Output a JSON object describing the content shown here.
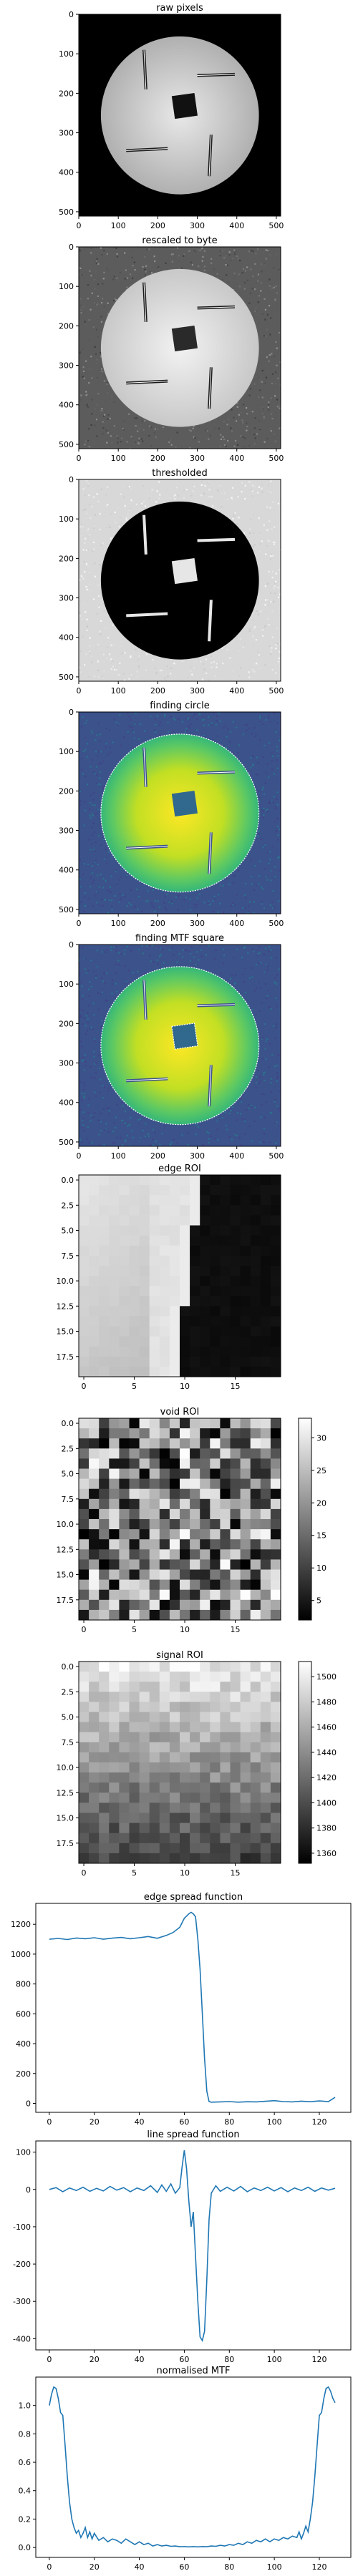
{
  "figure": {
    "background": "#ffffff",
    "axis_color": "#000000",
    "line_color": "#1f77b4"
  },
  "chart_data": [
    {
      "type": "heatmap",
      "title": "raw pixels",
      "colormap": "gray",
      "x_ticks": [
        0,
        100,
        200,
        300,
        400,
        500
      ],
      "y_ticks": [
        0,
        100,
        200,
        300,
        400,
        500
      ],
      "xlim": [
        0,
        511
      ],
      "ylim": [
        0,
        511
      ],
      "image": {
        "kind": "phantom",
        "variant": "raw",
        "circle": {
          "cx": 256,
          "cy": 256,
          "r": 200
        },
        "outside": "#000000",
        "center": "#e8e8e8",
        "rim": "#b0b0b0",
        "square": {
          "cx": 268,
          "cy": 232,
          "size": 58,
          "angle": -8,
          "fill": "#111111"
        }
      }
    },
    {
      "type": "heatmap",
      "title": "rescaled to byte",
      "colormap": "gray",
      "x_ticks": [
        0,
        100,
        200,
        300,
        400,
        500
      ],
      "y_ticks": [
        0,
        100,
        200,
        300,
        400,
        500
      ],
      "xlim": [
        0,
        511
      ],
      "ylim": [
        0,
        511
      ],
      "image": {
        "kind": "phantom",
        "variant": "rescaled",
        "circle": {
          "cx": 256,
          "cy": 256,
          "r": 200
        },
        "outside": "#5c5c5c",
        "center": "#f2f2f2",
        "rim": "#c8c8c8",
        "square": {
          "cx": 268,
          "cy": 232,
          "size": 58,
          "angle": -8,
          "fill": "#2a2a2a"
        }
      }
    },
    {
      "type": "heatmap",
      "title": "thresholded",
      "colormap": "gray",
      "x_ticks": [
        0,
        100,
        200,
        300,
        400,
        500
      ],
      "y_ticks": [
        0,
        100,
        200,
        300,
        400,
        500
      ],
      "xlim": [
        0,
        511
      ],
      "ylim": [
        0,
        511
      ],
      "image": {
        "kind": "phantom",
        "variant": "threshold",
        "circle": {
          "cx": 256,
          "cy": 256,
          "r": 200
        },
        "outside": "#d8d8d8",
        "center": "#000000",
        "rim": "#000000",
        "square": {
          "cx": 268,
          "cy": 232,
          "size": 58,
          "angle": -8,
          "fill": "#e6e6e6"
        }
      }
    },
    {
      "type": "heatmap",
      "title": "finding circle",
      "colormap": "viridis",
      "x_ticks": [
        0,
        100,
        200,
        300,
        400,
        500
      ],
      "y_ticks": [
        0,
        100,
        200,
        300,
        400,
        500
      ],
      "xlim": [
        0,
        511
      ],
      "ylim": [
        0,
        511
      ],
      "image": {
        "kind": "phantom",
        "variant": "viridis",
        "circle": {
          "cx": 256,
          "cy": 256,
          "r": 200
        },
        "outside": "#3b528b",
        "center": "#fde725",
        "rim": "#5ec962",
        "square": {
          "cx": 268,
          "cy": 232,
          "size": 58,
          "angle": -8,
          "fill": "#31688e"
        },
        "outline_circle": true
      }
    },
    {
      "type": "heatmap",
      "title": "finding MTF square",
      "colormap": "viridis",
      "x_ticks": [
        0,
        100,
        200,
        300,
        400,
        500
      ],
      "y_ticks": [
        0,
        100,
        200,
        300,
        400,
        500
      ],
      "xlim": [
        0,
        511
      ],
      "ylim": [
        0,
        511
      ],
      "image": {
        "kind": "phantom",
        "variant": "viridis",
        "circle": {
          "cx": 256,
          "cy": 256,
          "r": 200
        },
        "outside": "#3b528b",
        "center": "#fde725",
        "rim": "#5ec962",
        "square": {
          "cx": 268,
          "cy": 232,
          "size": 58,
          "angle": -8,
          "fill": "#31688e"
        },
        "outline_circle": true,
        "outline_square": true
      }
    },
    {
      "type": "heatmap",
      "title": "edge ROI",
      "colormap": "gray",
      "x_ticks": [
        0,
        5,
        10,
        15
      ],
      "y_ticks": [
        0.0,
        2.5,
        5.0,
        7.5,
        10.0,
        12.5,
        15.0,
        17.5
      ],
      "xlim": [
        -0.5,
        19.5
      ],
      "ylim": [
        -0.5,
        19.5
      ],
      "image": {
        "kind": "grid",
        "variant": "edge",
        "n": 20
      }
    },
    {
      "type": "heatmap",
      "title": "void ROI",
      "colormap": "gray",
      "x_ticks": [
        0,
        5,
        10,
        15
      ],
      "y_ticks": [
        0.0,
        2.5,
        5.0,
        7.5,
        10.0,
        12.5,
        15.0,
        17.5
      ],
      "xlim": [
        -0.5,
        19.5
      ],
      "ylim": [
        -0.5,
        19.5
      ],
      "colorbar": {
        "min": 2,
        "max": 33,
        "ticks": [
          5,
          10,
          15,
          20,
          25,
          30
        ]
      },
      "image": {
        "kind": "grid",
        "variant": "void",
        "n": 20
      }
    },
    {
      "type": "heatmap",
      "title": "signal ROI",
      "colormap": "gray",
      "x_ticks": [
        0,
        5,
        10,
        15
      ],
      "y_ticks": [
        0.0,
        2.5,
        5.0,
        7.5,
        10.0,
        12.5,
        15.0,
        17.5
      ],
      "xlim": [
        -0.5,
        19.5
      ],
      "ylim": [
        -0.5,
        19.5
      ],
      "colorbar": {
        "min": 1352,
        "max": 1512,
        "ticks": [
          1360,
          1380,
          1400,
          1420,
          1440,
          1460,
          1480,
          1500
        ]
      },
      "image": {
        "kind": "grid",
        "variant": "signal",
        "n": 20
      }
    },
    {
      "type": "line",
      "title": "edge spread function",
      "x_ticks": [
        0,
        20,
        40,
        60,
        80,
        100,
        120
      ],
      "y_ticks": [
        0,
        200,
        400,
        600,
        800,
        1000,
        1200
      ],
      "xlim": [
        -6,
        134
      ],
      "ylim": [
        -60,
        1340
      ],
      "series": [
        {
          "points": [
            [
              0,
              1100
            ],
            [
              4,
              1105
            ],
            [
              8,
              1098
            ],
            [
              12,
              1108
            ],
            [
              16,
              1103
            ],
            [
              20,
              1110
            ],
            [
              24,
              1100
            ],
            [
              28,
              1107
            ],
            [
              32,
              1112
            ],
            [
              36,
              1103
            ],
            [
              40,
              1110
            ],
            [
              44,
              1118
            ],
            [
              48,
              1106
            ],
            [
              52,
              1125
            ],
            [
              55,
              1145
            ],
            [
              58,
              1180
            ],
            [
              60,
              1240
            ],
            [
              62,
              1270
            ],
            [
              63,
              1280
            ],
            [
              64,
              1270
            ],
            [
              65,
              1250
            ],
            [
              66,
              1100
            ],
            [
              67,
              900
            ],
            [
              68,
              600
            ],
            [
              69,
              300
            ],
            [
              70,
              80
            ],
            [
              71,
              12
            ],
            [
              72,
              8
            ],
            [
              76,
              10
            ],
            [
              80,
              12
            ],
            [
              84,
              8
            ],
            [
              88,
              11
            ],
            [
              92,
              10
            ],
            [
              96,
              14
            ],
            [
              100,
              18
            ],
            [
              104,
              12
            ],
            [
              108,
              10
            ],
            [
              112,
              15
            ],
            [
              116,
              11
            ],
            [
              120,
              16
            ],
            [
              124,
              12
            ],
            [
              127,
              40
            ]
          ]
        }
      ]
    },
    {
      "type": "line",
      "title": "line spread function",
      "x_ticks": [
        0,
        20,
        40,
        60,
        80,
        100,
        120
      ],
      "y_ticks": [
        -400,
        -300,
        -200,
        -100,
        0,
        100
      ],
      "xlim": [
        -6,
        134
      ],
      "ylim": [
        -430,
        130
      ],
      "series": [
        {
          "points": [
            [
              0,
              0
            ],
            [
              3,
              5
            ],
            [
              6,
              -6
            ],
            [
              9,
              4
            ],
            [
              12,
              -3
            ],
            [
              15,
              6
            ],
            [
              18,
              -5
            ],
            [
              21,
              3
            ],
            [
              24,
              -4
            ],
            [
              27,
              8
            ],
            [
              30,
              -2
            ],
            [
              33,
              5
            ],
            [
              36,
              -6
            ],
            [
              39,
              4
            ],
            [
              42,
              -3
            ],
            [
              45,
              10
            ],
            [
              48,
              -8
            ],
            [
              50,
              12
            ],
            [
              52,
              -5
            ],
            [
              54,
              15
            ],
            [
              56,
              -10
            ],
            [
              58,
              5
            ],
            [
              59,
              60
            ],
            [
              60,
              105
            ],
            [
              61,
              55
            ],
            [
              62,
              -30
            ],
            [
              63,
              -100
            ],
            [
              64,
              -60
            ],
            [
              65,
              -180
            ],
            [
              66,
              -300
            ],
            [
              67,
              -395
            ],
            [
              68,
              -405
            ],
            [
              69,
              -380
            ],
            [
              70,
              -240
            ],
            [
              71,
              -80
            ],
            [
              72,
              -10
            ],
            [
              74,
              10
            ],
            [
              76,
              -5
            ],
            [
              79,
              6
            ],
            [
              82,
              -4
            ],
            [
              85,
              8
            ],
            [
              88,
              -6
            ],
            [
              91,
              4
            ],
            [
              94,
              -3
            ],
            [
              97,
              6
            ],
            [
              100,
              -4
            ],
            [
              103,
              5
            ],
            [
              106,
              -6
            ],
            [
              109,
              4
            ],
            [
              112,
              -3
            ],
            [
              115,
              6
            ],
            [
              118,
              -5
            ],
            [
              121,
              4
            ],
            [
              124,
              -2
            ],
            [
              127,
              3
            ]
          ]
        }
      ]
    },
    {
      "type": "line",
      "title": "normalised MTF",
      "x_ticks": [
        0,
        20,
        40,
        60,
        80,
        100,
        120
      ],
      "y_ticks": [
        0.0,
        0.2,
        0.4,
        0.6,
        0.8,
        1.0
      ],
      "xlim": [
        -6,
        134
      ],
      "ylim": [
        -0.07,
        1.2
      ],
      "series": [
        {
          "points": [
            [
              0,
              1.0
            ],
            [
              1,
              1.08
            ],
            [
              2,
              1.13
            ],
            [
              3,
              1.12
            ],
            [
              4,
              1.05
            ],
            [
              5,
              0.95
            ],
            [
              6,
              0.93
            ],
            [
              7,
              0.72
            ],
            [
              8,
              0.5
            ],
            [
              9,
              0.32
            ],
            [
              10,
              0.2
            ],
            [
              11,
              0.14
            ],
            [
              12,
              0.1
            ],
            [
              13,
              0.12
            ],
            [
              14,
              0.07
            ],
            [
              15,
              0.1
            ],
            [
              16,
              0.14
            ],
            [
              17,
              0.07
            ],
            [
              18,
              0.11
            ],
            [
              19,
              0.06
            ],
            [
              20,
              0.1
            ],
            [
              22,
              0.05
            ],
            [
              24,
              0.07
            ],
            [
              26,
              0.04
            ],
            [
              28,
              0.06
            ],
            [
              30,
              0.05
            ],
            [
              32,
              0.03
            ],
            [
              34,
              0.06
            ],
            [
              36,
              0.04
            ],
            [
              38,
              0.02
            ],
            [
              40,
              0.04
            ],
            [
              42,
              0.02
            ],
            [
              44,
              0.03
            ],
            [
              46,
              0.01
            ],
            [
              48,
              0.02
            ],
            [
              50,
              0.01
            ],
            [
              52,
              0.015
            ],
            [
              54,
              0.008
            ],
            [
              56,
              0.01
            ],
            [
              58,
              0.005
            ],
            [
              60,
              0.006
            ],
            [
              62,
              0.004
            ],
            [
              64,
              0.006
            ],
            [
              66,
              0.004
            ],
            [
              68,
              0.006
            ],
            [
              70,
              0.005
            ],
            [
              72,
              0.01
            ],
            [
              74,
              0.008
            ],
            [
              76,
              0.015
            ],
            [
              78,
              0.01
            ],
            [
              80,
              0.02
            ],
            [
              82,
              0.015
            ],
            [
              84,
              0.03
            ],
            [
              86,
              0.02
            ],
            [
              88,
              0.04
            ],
            [
              90,
              0.03
            ],
            [
              92,
              0.05
            ],
            [
              94,
              0.04
            ],
            [
              96,
              0.06
            ],
            [
              98,
              0.04
            ],
            [
              100,
              0.06
            ],
            [
              102,
              0.05
            ],
            [
              104,
              0.07
            ],
            [
              106,
              0.06
            ],
            [
              108,
              0.08
            ],
            [
              110,
              0.07
            ],
            [
              111,
              0.11
            ],
            [
              112,
              0.06
            ],
            [
              113,
              0.1
            ],
            [
              114,
              0.15
            ],
            [
              115,
              0.11
            ],
            [
              116,
              0.2
            ],
            [
              117,
              0.32
            ],
            [
              118,
              0.5
            ],
            [
              119,
              0.72
            ],
            [
              120,
              0.93
            ],
            [
              121,
              0.95
            ],
            [
              122,
              1.05
            ],
            [
              123,
              1.12
            ],
            [
              124,
              1.13
            ],
            [
              125,
              1.1
            ],
            [
              126,
              1.05
            ],
            [
              127,
              1.02
            ]
          ]
        }
      ]
    }
  ]
}
